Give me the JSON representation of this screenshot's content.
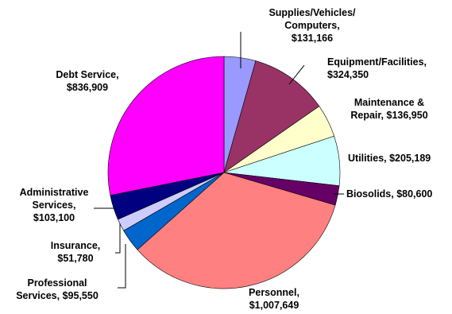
{
  "chart_data": {
    "type": "pie",
    "title": "",
    "legend": "none",
    "colors": {
      "supplies": "#9999ff",
      "equipment": "#993366",
      "maintenance": "#ffffcc",
      "utilities": "#ccffff",
      "biosolids": "#660066",
      "personnel": "#ff8080",
      "professional": "#0066cc",
      "insurance": "#ccccff",
      "administrative": "#000080",
      "debt": "#ff00ff"
    },
    "slices": [
      {
        "key": "supplies",
        "value": 131166,
        "label_lines": [
          "Supplies/Vehicles/",
          "Computers,",
          "$131,166"
        ]
      },
      {
        "key": "equipment",
        "value": 324350,
        "label_lines": [
          "Equipment/Facilities,",
          "$324,350"
        ]
      },
      {
        "key": "maintenance",
        "value": 136950,
        "label_lines": [
          "Maintenance &",
          "Repair,  $136,950"
        ]
      },
      {
        "key": "utilities",
        "value": 205189,
        "label_lines": [
          "Utilities,  $205,189"
        ]
      },
      {
        "key": "biosolids",
        "value": 80600,
        "label_lines": [
          "Biosolids,  $80,600"
        ]
      },
      {
        "key": "personnel",
        "value": 1007649,
        "label_lines": [
          "Personnel,",
          "$1,007,649"
        ]
      },
      {
        "key": "professional",
        "value": 95550,
        "label_lines": [
          "Professional",
          "Services,  $95,550"
        ]
      },
      {
        "key": "insurance",
        "value": 51780,
        "label_lines": [
          "Insurance,",
          "$51,780"
        ]
      },
      {
        "key": "administrative",
        "value": 103100,
        "label_lines": [
          "Administrative",
          "Services,",
          "$103,100"
        ]
      },
      {
        "key": "debt",
        "value": 836909,
        "label_lines": [
          "Debt Service,",
          "$836,909"
        ]
      }
    ]
  }
}
